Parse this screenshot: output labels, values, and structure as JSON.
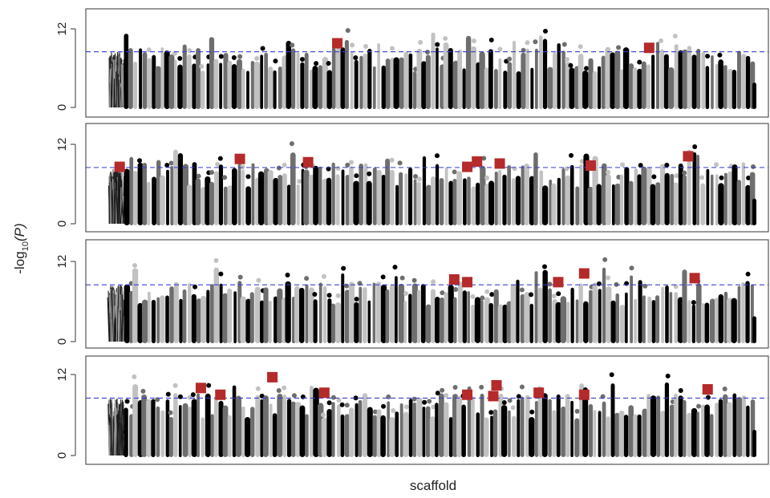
{
  "chart_data": {
    "type": "scatter",
    "subtype": "manhattan",
    "xlabel": "scaffold",
    "ylabel": "-log10(P)",
    "ylabel_parts": {
      "base": "-log",
      "sub": "10",
      "arg": "(P)"
    },
    "panels": [
      {
        "ylim": [
          0,
          14
        ],
        "yticks": [
          "0",
          "12"
        ],
        "threshold": 8.5,
        "highlighted": [
          {
            "x": 0.355,
            "y": 9.8
          },
          {
            "x": 0.835,
            "y": 9.1
          }
        ]
      },
      {
        "ylim": [
          0,
          14
        ],
        "yticks": [
          "0",
          "12"
        ],
        "threshold": 8.5,
        "highlighted": [
          {
            "x": 0.02,
            "y": 8.6
          },
          {
            "x": 0.205,
            "y": 9.8
          },
          {
            "x": 0.31,
            "y": 9.3
          },
          {
            "x": 0.555,
            "y": 8.6
          },
          {
            "x": 0.57,
            "y": 9.4
          },
          {
            "x": 0.605,
            "y": 9.1
          },
          {
            "x": 0.745,
            "y": 8.8
          },
          {
            "x": 0.895,
            "y": 10.2
          }
        ]
      },
      {
        "ylim": [
          0,
          14
        ],
        "yticks": [
          "0",
          "12"
        ],
        "threshold": 8.5,
        "highlighted": [
          {
            "x": 0.535,
            "y": 9.3
          },
          {
            "x": 0.555,
            "y": 8.9
          },
          {
            "x": 0.695,
            "y": 8.9
          },
          {
            "x": 0.735,
            "y": 10.2
          },
          {
            "x": 0.905,
            "y": 9.5
          }
        ]
      },
      {
        "ylim": [
          0,
          14
        ],
        "yticks": [
          "0",
          "12"
        ],
        "threshold": 8.5,
        "highlighted": [
          {
            "x": 0.145,
            "y": 10.0
          },
          {
            "x": 0.175,
            "y": 9.0
          },
          {
            "x": 0.255,
            "y": 11.6
          },
          {
            "x": 0.335,
            "y": 9.3
          },
          {
            "x": 0.555,
            "y": 9.0
          },
          {
            "x": 0.595,
            "y": 8.8
          },
          {
            "x": 0.6,
            "y": 10.4
          },
          {
            "x": 0.665,
            "y": 9.3
          },
          {
            "x": 0.735,
            "y": 9.0
          },
          {
            "x": 0.925,
            "y": 9.8
          }
        ]
      }
    ],
    "colors": {
      "series": [
        "#000000",
        "#6e6e6e",
        "#c2c2c2"
      ],
      "highlight": "#b52a2a",
      "threshold": "#3b3bd6",
      "frame": "#333333"
    }
  }
}
